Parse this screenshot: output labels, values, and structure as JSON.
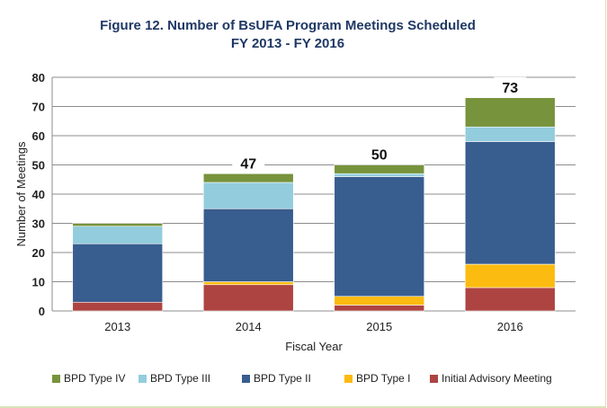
{
  "title_line1": "Figure 12. Number of BsUFA Program Meetings Scheduled",
  "title_line2": "FY 2013 - FY 2016",
  "chart_data": {
    "type": "bar",
    "stacked": true,
    "title": "Figure 12. Number of BsUFA Program Meetings Scheduled FY 2013 - FY 2016",
    "xlabel": "Fiscal Year",
    "ylabel": "Number of Meetings",
    "categories": [
      "2013",
      "2014",
      "2015",
      "2016"
    ],
    "ylim": [
      0,
      80
    ],
    "yticks": [
      0,
      10,
      20,
      30,
      40,
      50,
      60,
      70,
      80
    ],
    "grid": true,
    "legend_position": "bottom",
    "series": [
      {
        "name": "Initial Advisory Meeting",
        "color": "#ad4441",
        "values": [
          3,
          9,
          2,
          8
        ]
      },
      {
        "name": "BPD Type I",
        "color": "#fbbb10",
        "values": [
          0,
          1,
          3,
          8
        ]
      },
      {
        "name": "BPD Type II",
        "color": "#385d8f",
        "values": [
          20,
          25,
          41,
          42
        ]
      },
      {
        "name": "BPD Type III",
        "color": "#93cddd",
        "values": [
          6,
          9,
          1,
          5
        ]
      },
      {
        "name": "BPD Type IV",
        "color": "#77933c",
        "values": [
          1,
          3,
          3,
          10
        ]
      }
    ],
    "totals": [
      null,
      "47",
      "50",
      "73"
    ]
  }
}
